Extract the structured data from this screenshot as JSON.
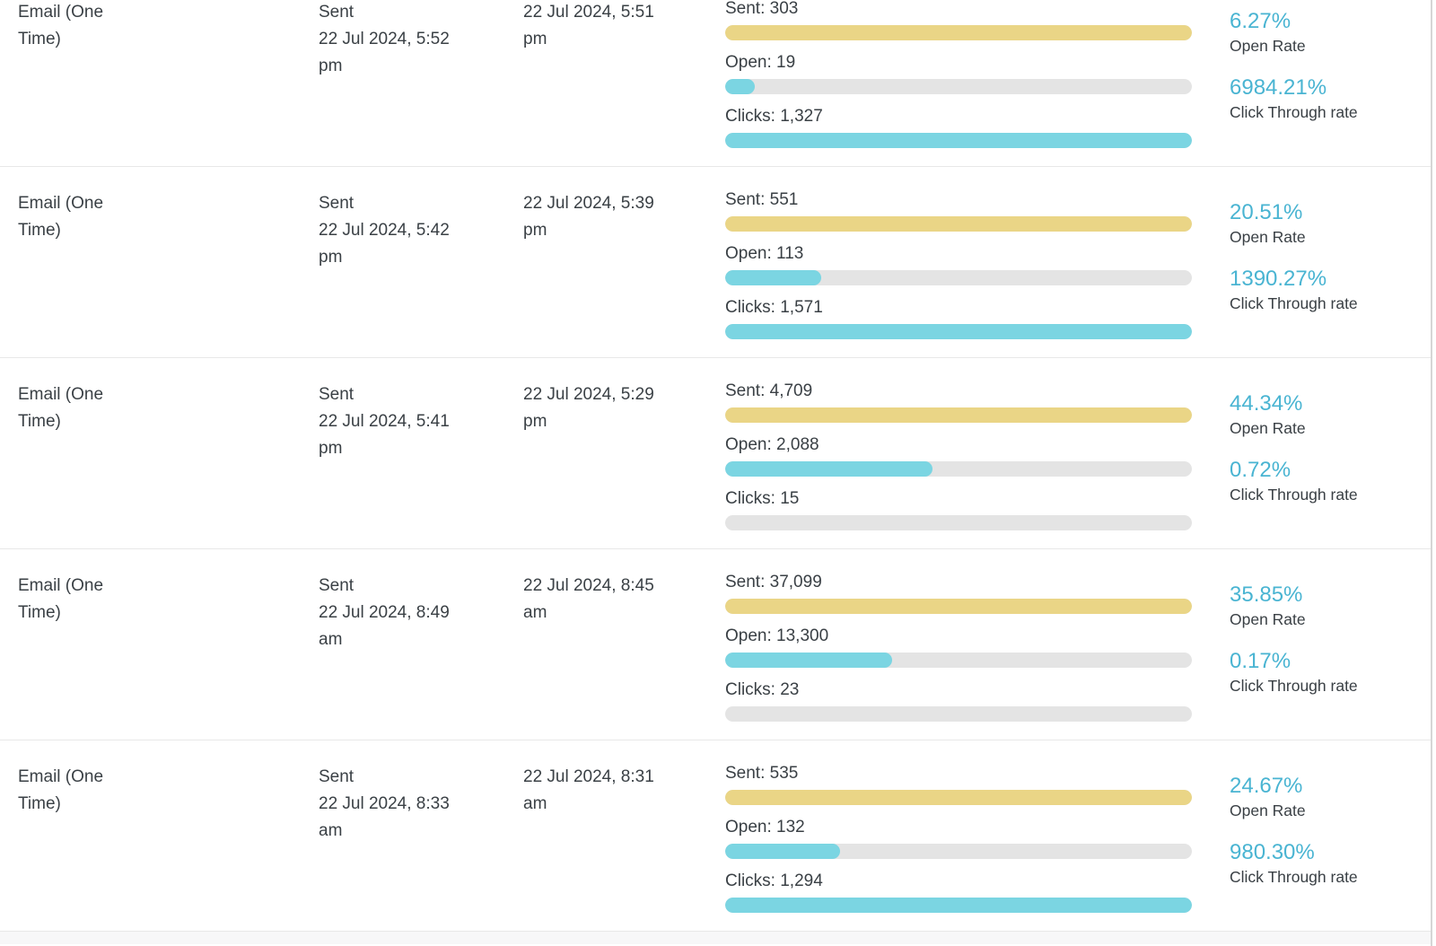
{
  "colors": {
    "sent_bar": "#ead586",
    "open_bar": "#7bd5e2",
    "clicks_bar": "#7bd5e2",
    "bar_track": "#e4e4e4",
    "rate_text": "#49b4d2",
    "body_text": "#3a4045",
    "row_divider": "#e8e8e8"
  },
  "table": {
    "rows": [
      {
        "type": "Email (One Time)",
        "status": "Sent",
        "sent_date": "22 Jul 2024, 5:52 pm",
        "delivered_date": "22 Jul 2024, 5:51 pm",
        "bars": [
          {
            "name": "sent-bar",
            "label": "Sent: 303",
            "value": 303,
            "fill_percent": 100,
            "color": "#ead586"
          },
          {
            "name": "open-bar",
            "label": "Open: 19",
            "value": 19,
            "fill_percent": 6.27,
            "color": "#7bd5e2"
          },
          {
            "name": "clicks-bar",
            "label": "Clicks: 1,327",
            "value": 1327,
            "fill_percent": 100,
            "color": "#7bd5e2"
          }
        ],
        "open_rate": "6.27%",
        "open_rate_label": "Open Rate",
        "click_through_rate": "6984.21%",
        "click_through_rate_label": "Click Through rate"
      },
      {
        "type": "Email (One Time)",
        "status": "Sent",
        "sent_date": "22 Jul 2024, 5:42 pm",
        "delivered_date": "22 Jul 2024, 5:39 pm",
        "bars": [
          {
            "name": "sent-bar",
            "label": "Sent: 551",
            "value": 551,
            "fill_percent": 100,
            "color": "#ead586"
          },
          {
            "name": "open-bar",
            "label": "Open: 113",
            "value": 113,
            "fill_percent": 20.51,
            "color": "#7bd5e2"
          },
          {
            "name": "clicks-bar",
            "label": "Clicks: 1,571",
            "value": 1571,
            "fill_percent": 100,
            "color": "#7bd5e2"
          }
        ],
        "open_rate": "20.51%",
        "open_rate_label": "Open Rate",
        "click_through_rate": "1390.27%",
        "click_through_rate_label": "Click Through rate"
      },
      {
        "type": "Email (One Time)",
        "status": "Sent",
        "sent_date": "22 Jul 2024, 5:41 pm",
        "delivered_date": "22 Jul 2024, 5:29 pm",
        "bars": [
          {
            "name": "sent-bar",
            "label": "Sent: 4,709",
            "value": 4709,
            "fill_percent": 100,
            "color": "#ead586"
          },
          {
            "name": "open-bar",
            "label": "Open: 2,088",
            "value": 2088,
            "fill_percent": 44.34,
            "color": "#7bd5e2"
          },
          {
            "name": "clicks-bar",
            "label": "Clicks: 15",
            "value": 15,
            "fill_percent": 0,
            "color": "#7bd5e2"
          }
        ],
        "open_rate": "44.34%",
        "open_rate_label": "Open Rate",
        "click_through_rate": "0.72%",
        "click_through_rate_label": "Click Through rate"
      },
      {
        "type": "Email (One Time)",
        "status": "Sent",
        "sent_date": "22 Jul 2024, 8:49 am",
        "delivered_date": "22 Jul 2024, 8:45 am",
        "bars": [
          {
            "name": "sent-bar",
            "label": "Sent: 37,099",
            "value": 37099,
            "fill_percent": 100,
            "color": "#ead586"
          },
          {
            "name": "open-bar",
            "label": "Open: 13,300",
            "value": 13300,
            "fill_percent": 35.85,
            "color": "#7bd5e2"
          },
          {
            "name": "clicks-bar",
            "label": "Clicks: 23",
            "value": 23,
            "fill_percent": 0,
            "color": "#7bd5e2"
          }
        ],
        "open_rate": "35.85%",
        "open_rate_label": "Open Rate",
        "click_through_rate": "0.17%",
        "click_through_rate_label": "Click Through rate"
      },
      {
        "type": "Email (One Time)",
        "status": "Sent",
        "sent_date": "22 Jul 2024, 8:33 am",
        "delivered_date": "22 Jul 2024, 8:31 am",
        "bars": [
          {
            "name": "sent-bar",
            "label": "Sent: 535",
            "value": 535,
            "fill_percent": 100,
            "color": "#ead586"
          },
          {
            "name": "open-bar",
            "label": "Open: 132",
            "value": 132,
            "fill_percent": 24.67,
            "color": "#7bd5e2"
          },
          {
            "name": "clicks-bar",
            "label": "Clicks: 1,294",
            "value": 1294,
            "fill_percent": 100,
            "color": "#7bd5e2"
          }
        ],
        "open_rate": "24.67%",
        "open_rate_label": "Open Rate",
        "click_through_rate": "980.30%",
        "click_through_rate_label": "Click Through rate"
      }
    ]
  }
}
